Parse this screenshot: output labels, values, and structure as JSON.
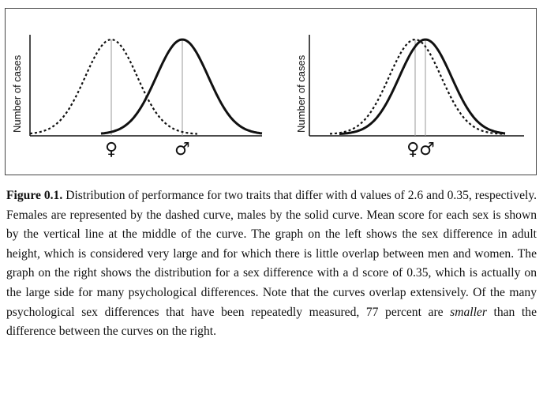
{
  "figure": {
    "left_panel": {
      "ylabel": "Number of cases",
      "female_symbol": "♀",
      "male_symbol": "♂",
      "d_value": 2.6
    },
    "right_panel": {
      "ylabel": "Number of cases",
      "combined_symbol": "♀♂",
      "d_value": 0.35
    },
    "legend_styles": {
      "female": "dashed",
      "male": "solid"
    }
  },
  "caption": {
    "label": "Figure 0.1.",
    "text_part1": " Distribution of performance for two traits that differ with d values of 2.6 and 0.35, respectively. Females are represented by the dashed curve, males by the solid curve. Mean score for each sex is shown by the vertical line at the middle of the curve. The graph on the left shows the sex difference in adult height, which is considered very large and for which there is little overlap between men and women. The graph on the right shows the distribution for a sex difference with a d score of 0.35, which is actually on the large side for many psychological differences. Note that the curves overlap extensively. Of the many psychological sex differences that have been repeatedly measured, 77 percent are ",
    "emphasis": "smaller",
    "text_part2": " than the difference between the curves on the right."
  }
}
